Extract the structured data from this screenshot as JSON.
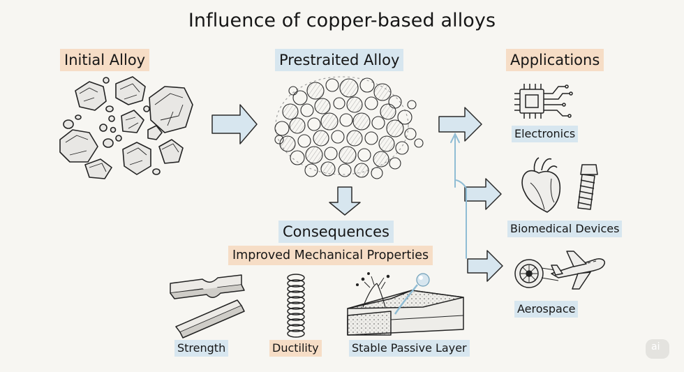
{
  "title": "Influence of copper-based alloys",
  "stages": {
    "initial": "Initial Alloy",
    "prestrained": "Prestraited Alloy",
    "applications": "Applications"
  },
  "consequences": {
    "heading": "Consequences",
    "subheading": "Improved Mechanical Properties",
    "items": [
      "Strength",
      "Ductility",
      "Stable Passive Layer"
    ]
  },
  "applications": [
    "Electronics",
    "Biomedical Devices",
    "Aerospace"
  ],
  "colors": {
    "peach_highlight": "#f6ddc6",
    "blue_highlight": "#d7e6ef",
    "arrow_fill": "#d7e6ef",
    "connector": "#8fbcd4"
  },
  "logo_text": "ai"
}
